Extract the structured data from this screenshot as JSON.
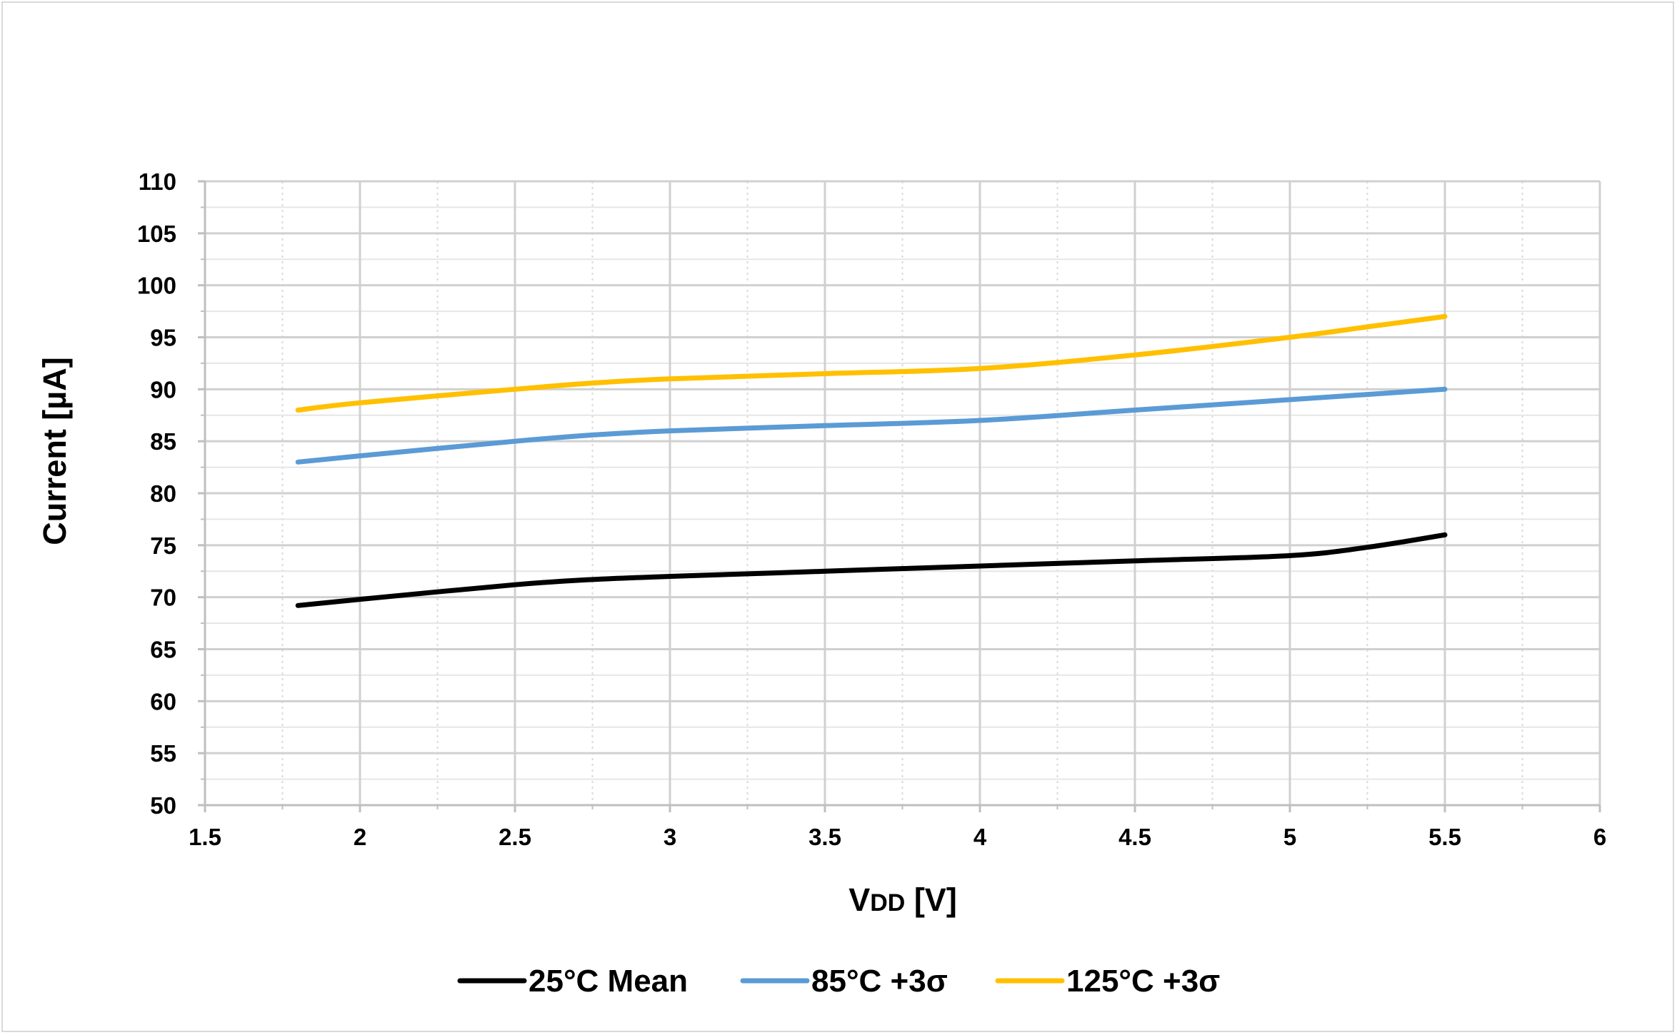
{
  "chart_data": {
    "type": "line",
    "title": "",
    "xlabel": "VDD [V]",
    "xlabel_main": "V",
    "xlabel_sub": "DD",
    "xlabel_rest": " [V]",
    "ylabel": "Current [µA]",
    "xlim": [
      1.5,
      6
    ],
    "ylim": [
      50,
      110
    ],
    "x_ticks": [
      1.5,
      2,
      2.5,
      3,
      3.5,
      4,
      4.5,
      5,
      5.5,
      6
    ],
    "y_ticks": [
      50,
      55,
      60,
      65,
      70,
      75,
      80,
      85,
      90,
      95,
      100,
      105,
      110
    ],
    "grid": true,
    "legend_position": "bottom",
    "x": [
      1.8,
      2.0,
      2.5,
      2.75,
      3.0,
      3.5,
      4.0,
      4.5,
      5.0,
      5.25,
      5.5
    ],
    "series": [
      {
        "name": "25°C Mean",
        "color": "#000000",
        "values": [
          69.2,
          69.8,
          71.2,
          71.7,
          72.0,
          72.5,
          73.0,
          73.5,
          74.0,
          74.8,
          76.0
        ]
      },
      {
        "name": "85°C +3σ",
        "color": "#5b9bd5",
        "values": [
          83.0,
          83.6,
          85.0,
          85.6,
          86.0,
          86.5,
          87.0,
          88.0,
          89.0,
          89.5,
          90.0
        ]
      },
      {
        "name": "125°C +3σ",
        "color": "#ffc000",
        "values": [
          88.0,
          88.7,
          90.0,
          90.6,
          91.0,
          91.5,
          92.0,
          93.3,
          95.0,
          96.0,
          97.0
        ]
      }
    ]
  }
}
